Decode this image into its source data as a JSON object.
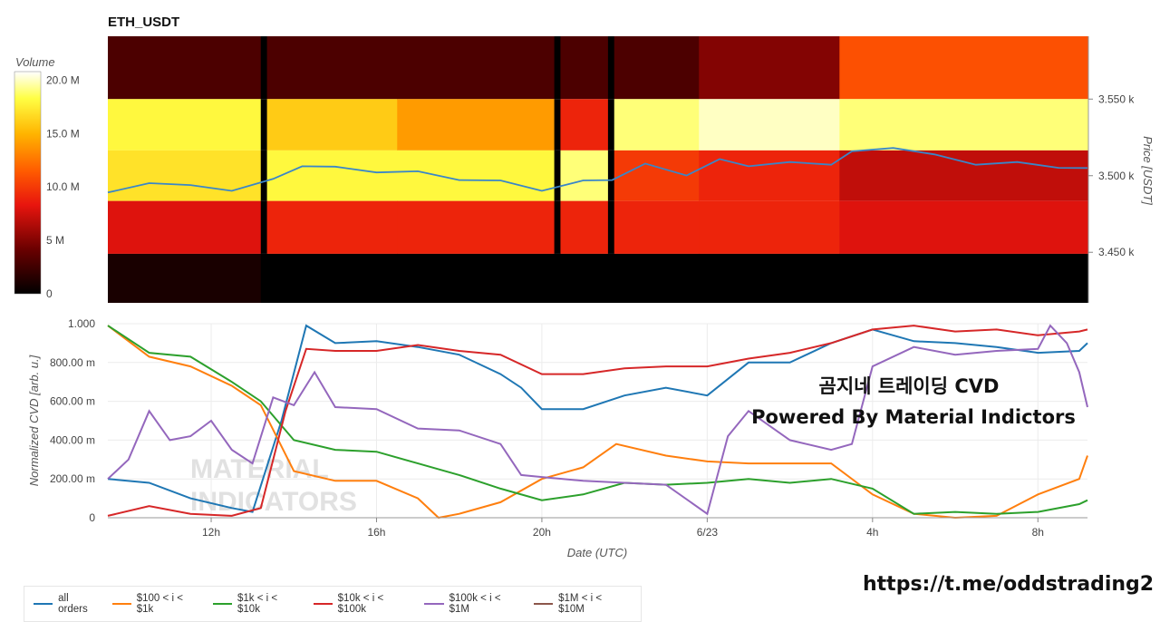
{
  "heatmap_title": "ETH_USDT",
  "colorbar": {
    "title": "Volume",
    "ticks": [
      "20.0 M",
      "15.0 M",
      "10.0 M",
      "5 M",
      "0"
    ],
    "tick_values": [
      20,
      15,
      10,
      5,
      0
    ],
    "max": 20.8
  },
  "price_axis": {
    "title": "Price [USDT]",
    "ticks": [
      "3.550 k",
      "3.500 k",
      "3.450 k"
    ],
    "tick_values": [
      3550,
      3500,
      3450
    ],
    "range": [
      3417,
      3591
    ]
  },
  "cvd_axis": {
    "title": "Normalized CVD [arb. u.]",
    "ticks": [
      "1.000",
      "800.00 m",
      "600.00 m",
      "400.00 m",
      "200.00 m",
      "0"
    ],
    "tick_values": [
      1,
      0.8,
      0.6,
      0.4,
      0.2,
      0
    ]
  },
  "x_axis": {
    "title": "Date (UTC)",
    "ticks": [
      "12h",
      "16h",
      "20h",
      "6/23",
      "4h",
      "8h"
    ],
    "tick_values": [
      12,
      16,
      20,
      24,
      28,
      32
    ],
    "range": [
      9.5,
      33.2
    ]
  },
  "overlay_text": {
    "line1": "곰지네 트레이딩 CVD",
    "line2": "Powered By Material Indictors"
  },
  "watermark": {
    "line1": "MATERIAL",
    "line2": "INDICATORS"
  },
  "link": "https://t.me/oddstrading2",
  "colors": {
    "all_orders": "#1f77b4",
    "s100_1k": "#ff7f0e",
    "s1k_10k": "#2ca02c",
    "s10k_100k": "#d62728",
    "s100k_1m": "#9467bd",
    "s1m_10m": "#8c564b"
  },
  "chart_data": [
    {
      "type": "heatmap",
      "title": "ETH_USDT",
      "y_bins_price": [
        3567,
        3533,
        3500,
        3467,
        3431
      ],
      "column_segments": [
        {
          "from": 9.5,
          "to": 13.2,
          "levels_m": [
            3,
            18,
            17,
            8,
            1
          ]
        },
        {
          "from": 13.2,
          "to": 13.35,
          "levels_m": [
            0,
            0,
            0,
            0,
            0
          ]
        },
        {
          "from": 13.35,
          "to": 16.5,
          "levels_m": [
            3,
            16,
            18,
            9,
            0
          ]
        },
        {
          "from": 16.5,
          "to": 20.3,
          "levels_m": [
            3,
            14,
            18,
            9,
            0
          ]
        },
        {
          "from": 20.3,
          "to": 20.45,
          "levels_m": [
            0,
            0,
            0,
            0,
            0
          ]
        },
        {
          "from": 20.45,
          "to": 21.6,
          "levels_m": [
            3,
            9,
            19,
            9,
            0
          ]
        },
        {
          "from": 21.6,
          "to": 21.75,
          "levels_m": [
            0,
            0,
            0,
            0,
            0
          ]
        },
        {
          "from": 21.75,
          "to": 23.8,
          "levels_m": [
            3,
            19,
            10,
            9,
            0
          ]
        },
        {
          "from": 23.8,
          "to": 27.2,
          "levels_m": [
            5,
            20,
            9,
            9,
            0
          ]
        },
        {
          "from": 27.2,
          "to": 33.2,
          "levels_m": [
            11,
            19,
            7,
            8,
            0
          ]
        }
      ]
    },
    {
      "type": "line",
      "name": "ETH_USDT price",
      "x": [
        9.5,
        10.5,
        11.5,
        12.5,
        13.5,
        14.2,
        15,
        16,
        17,
        18,
        19,
        20,
        21,
        21.7,
        22.5,
        23.5,
        24.3,
        25,
        26,
        27,
        27.5,
        28.5,
        29.5,
        30.5,
        31.5,
        32.5,
        33.2
      ],
      "y": [
        3489,
        3496,
        3493,
        3491,
        3497,
        3507,
        3505,
        3503,
        3502,
        3498,
        3496,
        3491,
        3496,
        3498,
        3507,
        3501,
        3510,
        3507,
        3508,
        3508,
        3515,
        3519,
        3513,
        3508,
        3508,
        3506,
        3505
      ]
    },
    {
      "type": "line",
      "title": "Normalized CVD",
      "xlabel": "Date (UTC)",
      "ylabel": "Normalized CVD [arb. u.]",
      "ylim": [
        0,
        1
      ],
      "series": [
        {
          "name": "all orders",
          "key": "all_orders",
          "x": [
            9.5,
            10.5,
            11.5,
            12.5,
            13,
            13.7,
            14.3,
            15,
            16,
            17,
            18,
            19,
            19.5,
            20,
            21,
            22,
            23,
            24,
            25,
            26,
            27,
            28,
            29,
            30,
            31,
            32,
            33,
            33.2
          ],
          "y": [
            0.2,
            0.18,
            0.1,
            0.05,
            0.03,
            0.5,
            0.99,
            0.9,
            0.91,
            0.88,
            0.84,
            0.74,
            0.67,
            0.56,
            0.56,
            0.63,
            0.67,
            0.63,
            0.8,
            0.8,
            0.9,
            0.97,
            0.91,
            0.9,
            0.88,
            0.85,
            0.86,
            0.9
          ]
        },
        {
          "name": "$100 < i < $1k",
          "key": "s100_1k",
          "x": [
            9.5,
            10.5,
            11.5,
            12.5,
            13.2,
            14,
            15,
            16,
            17,
            17.5,
            18,
            19,
            20,
            21,
            21.8,
            23,
            24,
            25,
            26,
            27,
            28,
            29,
            30,
            31,
            32,
            33,
            33.2
          ],
          "y": [
            0.99,
            0.83,
            0.78,
            0.68,
            0.58,
            0.24,
            0.19,
            0.19,
            0.1,
            0,
            0.02,
            0.08,
            0.2,
            0.26,
            0.38,
            0.32,
            0.29,
            0.28,
            0.28,
            0.28,
            0.12,
            0.02,
            0,
            0.01,
            0.12,
            0.2,
            0.32
          ]
        },
        {
          "name": "$1k < i < $10k",
          "key": "s1k_10k",
          "x": [
            9.5,
            10.5,
            11.5,
            12.5,
            13.2,
            14,
            15,
            16,
            17,
            18,
            19,
            20,
            21,
            22,
            23,
            24,
            25,
            26,
            27,
            28,
            29,
            30,
            31,
            32,
            33,
            33.2
          ],
          "y": [
            0.99,
            0.85,
            0.83,
            0.7,
            0.6,
            0.4,
            0.35,
            0.34,
            0.28,
            0.22,
            0.15,
            0.09,
            0.12,
            0.18,
            0.17,
            0.18,
            0.2,
            0.18,
            0.2,
            0.15,
            0.02,
            0.03,
            0.02,
            0.03,
            0.07,
            0.09
          ]
        },
        {
          "name": "$10k < i < $100k",
          "key": "s10k_100k",
          "x": [
            9.5,
            10.5,
            11.5,
            12.5,
            13.2,
            13.8,
            14.3,
            15,
            16,
            17,
            18,
            19,
            20,
            21,
            22,
            23,
            24,
            25,
            26,
            27,
            28,
            29,
            30,
            31,
            32,
            33,
            33.2
          ],
          "y": [
            0.01,
            0.06,
            0.02,
            0.01,
            0.05,
            0.55,
            0.87,
            0.86,
            0.86,
            0.89,
            0.86,
            0.84,
            0.74,
            0.74,
            0.77,
            0.78,
            0.78,
            0.82,
            0.85,
            0.9,
            0.97,
            0.99,
            0.96,
            0.97,
            0.94,
            0.96,
            0.97
          ]
        },
        {
          "name": "$100k < i < $1M",
          "key": "s100k_1m",
          "x": [
            9.5,
            10,
            10.5,
            11,
            11.5,
            12,
            12.5,
            13,
            13.5,
            14,
            14.5,
            15,
            16,
            17,
            18,
            19,
            19.5,
            20,
            21,
            22,
            23,
            24,
            24.5,
            25,
            26,
            27,
            27.5,
            28,
            29,
            30,
            31,
            32,
            32.3,
            32.7,
            33,
            33.2
          ],
          "y": [
            0.2,
            0.3,
            0.55,
            0.4,
            0.42,
            0.5,
            0.35,
            0.28,
            0.62,
            0.58,
            0.75,
            0.57,
            0.56,
            0.46,
            0.45,
            0.38,
            0.22,
            0.21,
            0.19,
            0.18,
            0.17,
            0.02,
            0.42,
            0.55,
            0.4,
            0.35,
            0.38,
            0.78,
            0.88,
            0.84,
            0.86,
            0.87,
            0.99,
            0.9,
            0.75,
            0.57
          ]
        },
        {
          "name": "$1M < i < $10M",
          "key": "s1m_10m",
          "x": [],
          "y": []
        }
      ]
    }
  ]
}
